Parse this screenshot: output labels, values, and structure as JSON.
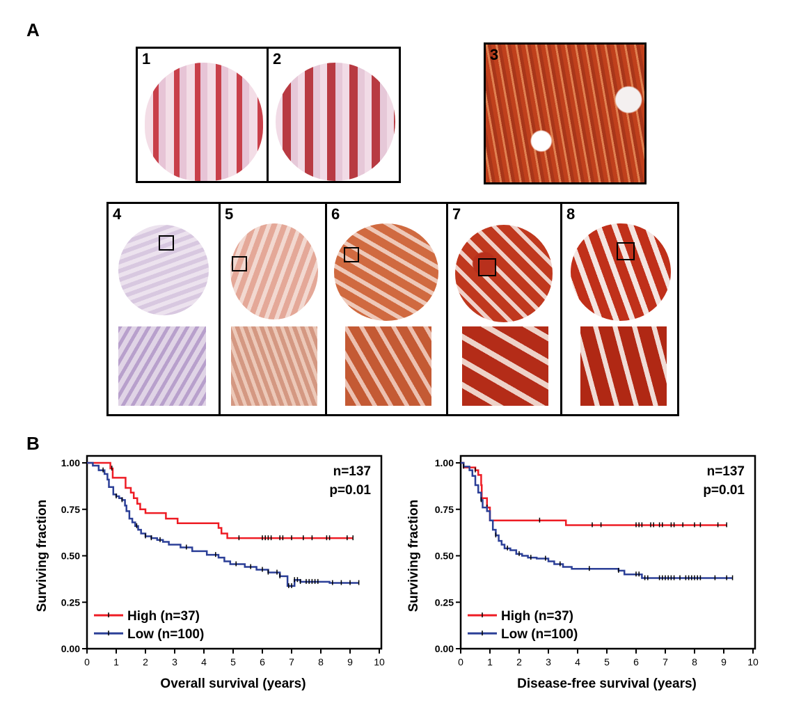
{
  "panel_a": {
    "label": "A",
    "tiles": [
      {
        "number": "1"
      },
      {
        "number": "2"
      },
      {
        "number": "3"
      },
      {
        "number": "4"
      },
      {
        "number": "5"
      },
      {
        "number": "6"
      },
      {
        "number": "7"
      },
      {
        "number": "8"
      }
    ]
  },
  "panel_b": {
    "label": "B"
  },
  "colors": {
    "high": "#ee1c24",
    "low": "#2b3f97"
  },
  "chart_data": [
    {
      "type": "line",
      "title": "",
      "xlabel": "Overall survival (years)",
      "ylabel": "Surviving fraction",
      "xlim": [
        0,
        10
      ],
      "ylim": [
        0,
        1
      ],
      "xticks": [
        "0",
        "1",
        "2",
        "3",
        "4",
        "5",
        "6",
        "7",
        "8",
        "9",
        "10"
      ],
      "yticks": [
        "0.00",
        "0.25",
        "0.50",
        "0.75",
        "1.00"
      ],
      "annotation": [
        "n=137",
        "p=0.01"
      ],
      "legend_position": "bottom-left",
      "series": [
        {
          "name": "High (n=37)",
          "color": "#ee1c24",
          "end": 9.1,
          "steps": [
            [
              0,
              1
            ],
            [
              0.8,
              0.97
            ],
            [
              0.88,
              0.92
            ],
            [
              1.32,
              0.865
            ],
            [
              1.5,
              0.84
            ],
            [
              1.6,
              0.81
            ],
            [
              1.72,
              0.78
            ],
            [
              1.82,
              0.75
            ],
            [
              2.0,
              0.73
            ],
            [
              2.7,
              0.7
            ],
            [
              3.1,
              0.675
            ],
            [
              4.5,
              0.65
            ],
            [
              4.6,
              0.62
            ],
            [
              4.8,
              0.595
            ]
          ],
          "censored": [
            0.85,
            5.2,
            6.0,
            6.1,
            6.2,
            6.3,
            6.6,
            6.7,
            7.0,
            7.4,
            7.7,
            8.2,
            8.3,
            8.9,
            9.1
          ]
        },
        {
          "name": "Low (n=100)",
          "color": "#2b3f97",
          "end": 9.3,
          "steps": [
            [
              0,
              1
            ],
            [
              0.2,
              0.985
            ],
            [
              0.4,
              0.96
            ],
            [
              0.6,
              0.94
            ],
            [
              0.7,
              0.91
            ],
            [
              0.75,
              0.87
            ],
            [
              0.9,
              0.83
            ],
            [
              1.0,
              0.82
            ],
            [
              1.1,
              0.81
            ],
            [
              1.2,
              0.8
            ],
            [
              1.3,
              0.77
            ],
            [
              1.35,
              0.74
            ],
            [
              1.45,
              0.7
            ],
            [
              1.55,
              0.68
            ],
            [
              1.65,
              0.66
            ],
            [
              1.75,
              0.64
            ],
            [
              1.85,
              0.62
            ],
            [
              2.0,
              0.605
            ],
            [
              2.2,
              0.595
            ],
            [
              2.4,
              0.585
            ],
            [
              2.6,
              0.575
            ],
            [
              2.8,
              0.56
            ],
            [
              3.2,
              0.545
            ],
            [
              3.6,
              0.525
            ],
            [
              4.1,
              0.505
            ],
            [
              4.5,
              0.49
            ],
            [
              4.7,
              0.47
            ],
            [
              4.9,
              0.455
            ],
            [
              5.4,
              0.44
            ],
            [
              5.8,
              0.425
            ],
            [
              6.2,
              0.41
            ],
            [
              6.6,
              0.39
            ],
            [
              7.1,
              0.37
            ],
            [
              7.3,
              0.36
            ],
            [
              8.3,
              0.354
            ],
            [
              6.86,
              0.3375
            ]
          ],
          "censored": [
            0.55,
            1.0,
            1.2,
            1.7,
            2.0,
            2.2,
            2.5,
            3.4,
            4.4,
            5.1,
            5.6,
            6.0,
            6.2,
            6.5,
            6.6,
            6.9,
            7.0,
            7.1,
            7.2,
            7.3,
            7.5,
            7.6,
            7.7,
            7.8,
            7.9,
            8.4,
            8.7,
            9.0,
            9.3
          ]
        }
      ]
    },
    {
      "type": "line",
      "title": "",
      "xlabel": "Disease-free survival (years)",
      "ylabel": "Surviving fraction",
      "xlim": [
        0,
        10
      ],
      "ylim": [
        0,
        1
      ],
      "xticks": [
        "0",
        "1",
        "2",
        "3",
        "4",
        "5",
        "6",
        "7",
        "8",
        "9",
        "10"
      ],
      "yticks": [
        "0.00",
        "0.25",
        "0.50",
        "0.75",
        "1.00"
      ],
      "annotation": [
        "n=137",
        "p=0.01"
      ],
      "legend_position": "bottom-left",
      "series": [
        {
          "name": "High (n=37)",
          "color": "#ee1c24",
          "end": 9.1,
          "steps": [
            [
              0,
              1
            ],
            [
              0.1,
              0.975
            ],
            [
              0.5,
              0.96
            ],
            [
              0.6,
              0.935
            ],
            [
              0.7,
              0.88
            ],
            [
              0.72,
              0.81
            ],
            [
              0.9,
              0.76
            ],
            [
              1.0,
              0.69
            ],
            [
              3.6,
              0.665
            ]
          ],
          "censored": [
            0.5,
            0.9,
            2.7,
            4.5,
            4.8,
            6.0,
            6.1,
            6.2,
            6.5,
            6.6,
            6.8,
            6.9,
            7.2,
            7.3,
            7.6,
            8.0,
            8.2,
            8.8,
            9.1
          ]
        },
        {
          "name": "Low (n=100)",
          "color": "#2b3f97",
          "end": 9.3,
          "steps": [
            [
              0,
              1
            ],
            [
              0.1,
              0.98
            ],
            [
              0.3,
              0.96
            ],
            [
              0.4,
              0.93
            ],
            [
              0.5,
              0.88
            ],
            [
              0.6,
              0.84
            ],
            [
              0.7,
              0.8
            ],
            [
              0.75,
              0.76
            ],
            [
              0.9,
              0.74
            ],
            [
              1.0,
              0.69
            ],
            [
              1.1,
              0.64
            ],
            [
              1.2,
              0.61
            ],
            [
              1.3,
              0.58
            ],
            [
              1.4,
              0.56
            ],
            [
              1.5,
              0.54
            ],
            [
              1.7,
              0.53
            ],
            [
              1.9,
              0.51
            ],
            [
              2.1,
              0.5
            ],
            [
              2.3,
              0.49
            ],
            [
              2.6,
              0.485
            ],
            [
              3.0,
              0.47
            ],
            [
              3.2,
              0.455
            ],
            [
              3.5,
              0.44
            ],
            [
              3.8,
              0.43
            ],
            [
              5.4,
              0.42
            ],
            [
              5.6,
              0.4
            ],
            [
              6.2,
              0.38
            ]
          ],
          "censored": [
            0.1,
            0.7,
            1.2,
            1.6,
            2.0,
            2.4,
            2.9,
            3.4,
            4.4,
            5.4,
            6.0,
            6.1,
            6.3,
            6.4,
            6.8,
            6.9,
            7.0,
            7.1,
            7.2,
            7.3,
            7.5,
            7.7,
            7.8,
            7.9,
            8.0,
            8.1,
            8.2,
            8.7,
            9.1,
            9.3
          ]
        }
      ]
    }
  ]
}
